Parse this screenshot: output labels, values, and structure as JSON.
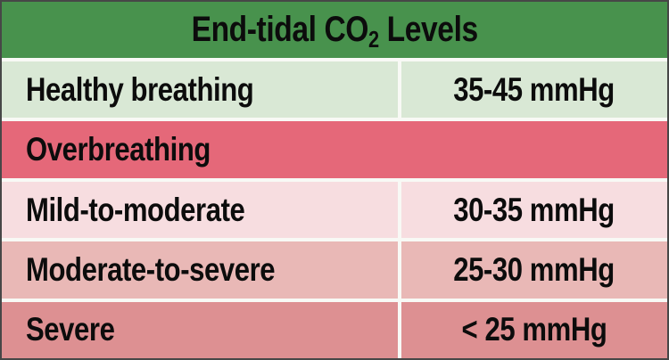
{
  "table": {
    "title_prefix": "End-tidal CO",
    "title_sub": "2",
    "title_suffix": " Levels",
    "rows": [
      {
        "label": "Healthy breathing",
        "value": "35-45 mmHg",
        "severity": "healthy"
      },
      {
        "label": "Overbreathing",
        "value": "",
        "severity": "section-header"
      },
      {
        "label": "Mild-to-moderate",
        "value": "30-35 mmHg",
        "severity": "mild"
      },
      {
        "label": "Moderate-to-severe",
        "value": "25-30 mmHg",
        "severity": "moderate"
      },
      {
        "label": "Severe",
        "value": "< 25 mmHg",
        "severity": "severe"
      }
    ],
    "colors": {
      "header_green": "#48924d",
      "healthy_row": "#d9e8d5",
      "overbreathing_row": "#e56879",
      "mild_row": "#f7dde0",
      "moderate_row": "#e9b8b6",
      "severe_row": "#dd9092",
      "divider": "#f8f9f5",
      "border": "#474747",
      "text": "#0c0c0c"
    }
  }
}
